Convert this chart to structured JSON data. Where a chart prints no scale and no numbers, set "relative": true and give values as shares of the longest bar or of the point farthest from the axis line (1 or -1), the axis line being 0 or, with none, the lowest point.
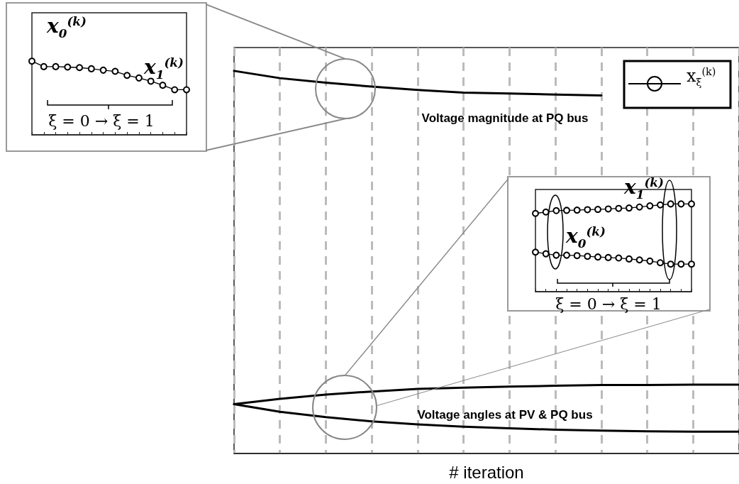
{
  "chart_data": [
    {
      "type": "line",
      "relative": true,
      "marker": "circle",
      "categories": [
        null,
        null,
        null,
        null,
        null,
        null,
        null,
        null,
        null,
        null,
        null,
        null,
        null,
        null
      ],
      "series": [
        {
          "color": "#000000",
          "values": [
            1,
            0.926,
            0.926,
            0.92,
            0.913,
            0.897,
            0.878,
            0.862,
            0.807,
            0.772,
            0.728,
            0.673,
            0.612,
            0.612
          ]
        }
      ],
      "annotations": [
        "x$_{0}$$^{(k)}$",
        "x$_{1}$$^{(k)}$",
        "ξ = 0 → ξ = 1"
      ]
    },
    {
      "type": "line",
      "relative": true,
      "marker": "none",
      "grid": "x",
      "xlabel": "# iteration",
      "categories": [
        null,
        null,
        null,
        null,
        null,
        null,
        null,
        null,
        null,
        null,
        null,
        null
      ],
      "series": [
        {
          "color": "#000000",
          "values": [
            1,
            0.981,
            0.969,
            0.959,
            0.95,
            0.943,
            0.941,
            0.938,
            0.936,
            null,
            null,
            null
          ]
        },
        {
          "color": "#000000",
          "values": [
            0.129,
            0.143,
            0.154,
            0.162,
            0.169,
            0.172,
            0.175,
            0.177,
            0.179,
            0.179,
            0.18,
            0.18
          ]
        },
        {
          "color": "#000000",
          "values": [
            0.129,
            0.109,
            0.095,
            0.084,
            0.076,
            0.07,
            0.066,
            0.062,
            0.06,
            0.058,
            0.057,
            0.057
          ]
        }
      ],
      "annotations": [
        "Voltage magnitude at PQ bus",
        "Voltage angles at PV & PQ bus",
        "x$_{ξ}$$^{(k)}$"
      ]
    },
    {
      "type": "line",
      "relative": true,
      "marker": "circle",
      "categories": [
        null,
        null,
        null,
        null,
        null,
        null,
        null,
        null,
        null,
        null,
        null,
        null,
        null,
        null,
        null,
        null
      ],
      "series": [
        {
          "color": "#000000",
          "values": [
            0.892,
            0.908,
            0.924,
            0.927,
            0.93,
            0.935,
            0.938,
            0.943,
            0.949,
            0.954,
            0.965,
            0.978,
            0.989,
            1,
            1,
            1
          ]
        },
        {
          "color": "#000000",
          "values": [
            0.451,
            0.432,
            0.416,
            0.416,
            0.411,
            0.403,
            0.395,
            0.389,
            0.384,
            0.373,
            0.362,
            0.349,
            0.33,
            0.314,
            0.314,
            0.314
          ]
        }
      ],
      "annotations": [
        "x$_{1}$$^{(k)}$",
        "x$_{0}$$^{(k)}$",
        "ξ = 0 → ξ = 1"
      ]
    }
  ]
}
